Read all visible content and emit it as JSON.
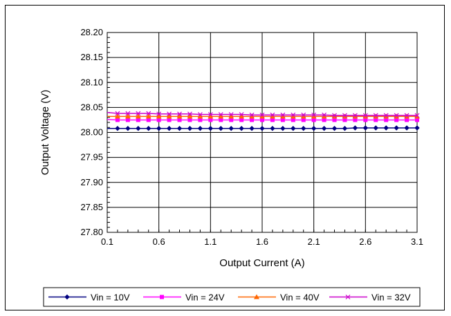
{
  "chart_data": {
    "type": "line",
    "xlabel": "Output Current (A)",
    "ylabel": "Output Voltage (V)",
    "xlim": [
      0.1,
      3.1
    ],
    "ylim": [
      27.8,
      28.2
    ],
    "x_ticks": [
      "0.1",
      "0.6",
      "1.1",
      "1.6",
      "2.1",
      "2.6",
      "3.1"
    ],
    "y_ticks": [
      "28.20",
      "28.15",
      "28.10",
      "28.05",
      "28.00",
      "27.95",
      "27.90",
      "27.85",
      "27.80"
    ],
    "grid": true,
    "legend_position": "bottom",
    "x": [
      0.1,
      0.2,
      0.3,
      0.4,
      0.5,
      0.6,
      0.7,
      0.8,
      0.9,
      1.0,
      1.1,
      1.2,
      1.3,
      1.4,
      1.5,
      1.6,
      1.7,
      1.8,
      1.9,
      2.0,
      2.1,
      2.2,
      2.3,
      2.4,
      2.5,
      2.6,
      2.7,
      2.8,
      2.9,
      3.0,
      3.1
    ],
    "series": [
      {
        "name": "Vin = 10V",
        "color": "#000080",
        "marker": "diamond",
        "values": [
          28.008,
          28.008,
          28.008,
          28.008,
          28.008,
          28.008,
          28.008,
          28.008,
          28.008,
          28.008,
          28.008,
          28.008,
          28.008,
          28.008,
          28.008,
          28.008,
          28.008,
          28.008,
          28.008,
          28.008,
          28.008,
          28.008,
          28.008,
          28.008,
          28.009,
          28.009,
          28.009,
          28.009,
          28.009,
          28.009,
          28.009
        ]
      },
      {
        "name": "Vin = 24V",
        "color": "#FF00FF",
        "marker": "square",
        "values": [
          28.026,
          28.025,
          28.025,
          28.025,
          28.025,
          28.025,
          28.025,
          28.025,
          28.025,
          28.025,
          28.025,
          28.025,
          28.025,
          28.025,
          28.025,
          28.025,
          28.025,
          28.025,
          28.025,
          28.025,
          28.025,
          28.025,
          28.025,
          28.025,
          28.025,
          28.025,
          28.025,
          28.025,
          28.025,
          28.025,
          28.025
        ]
      },
      {
        "name": "Vin = 40V",
        "color": "#FF6600",
        "marker": "triangle",
        "values": [
          28.032,
          28.032,
          28.032,
          28.032,
          28.032,
          28.032,
          28.032,
          28.032,
          28.032,
          28.032,
          28.032,
          28.032,
          28.032,
          28.032,
          28.032,
          28.032,
          28.032,
          28.032,
          28.032,
          28.032,
          28.032,
          28.032,
          28.032,
          28.032,
          28.032,
          28.032,
          28.032,
          28.032,
          28.032,
          28.032,
          28.032
        ]
      },
      {
        "name": "Vin = 32V",
        "color": "#CC00CC",
        "marker": "x",
        "values": [
          28.04,
          28.038,
          28.038,
          28.038,
          28.038,
          28.037,
          28.037,
          28.037,
          28.037,
          28.036,
          28.036,
          28.036,
          28.036,
          28.036,
          28.035,
          28.035,
          28.035,
          28.035,
          28.035,
          28.035,
          28.035,
          28.035,
          28.034,
          28.034,
          28.034,
          28.034,
          28.034,
          28.034,
          28.034,
          28.034,
          28.034
        ]
      }
    ]
  }
}
